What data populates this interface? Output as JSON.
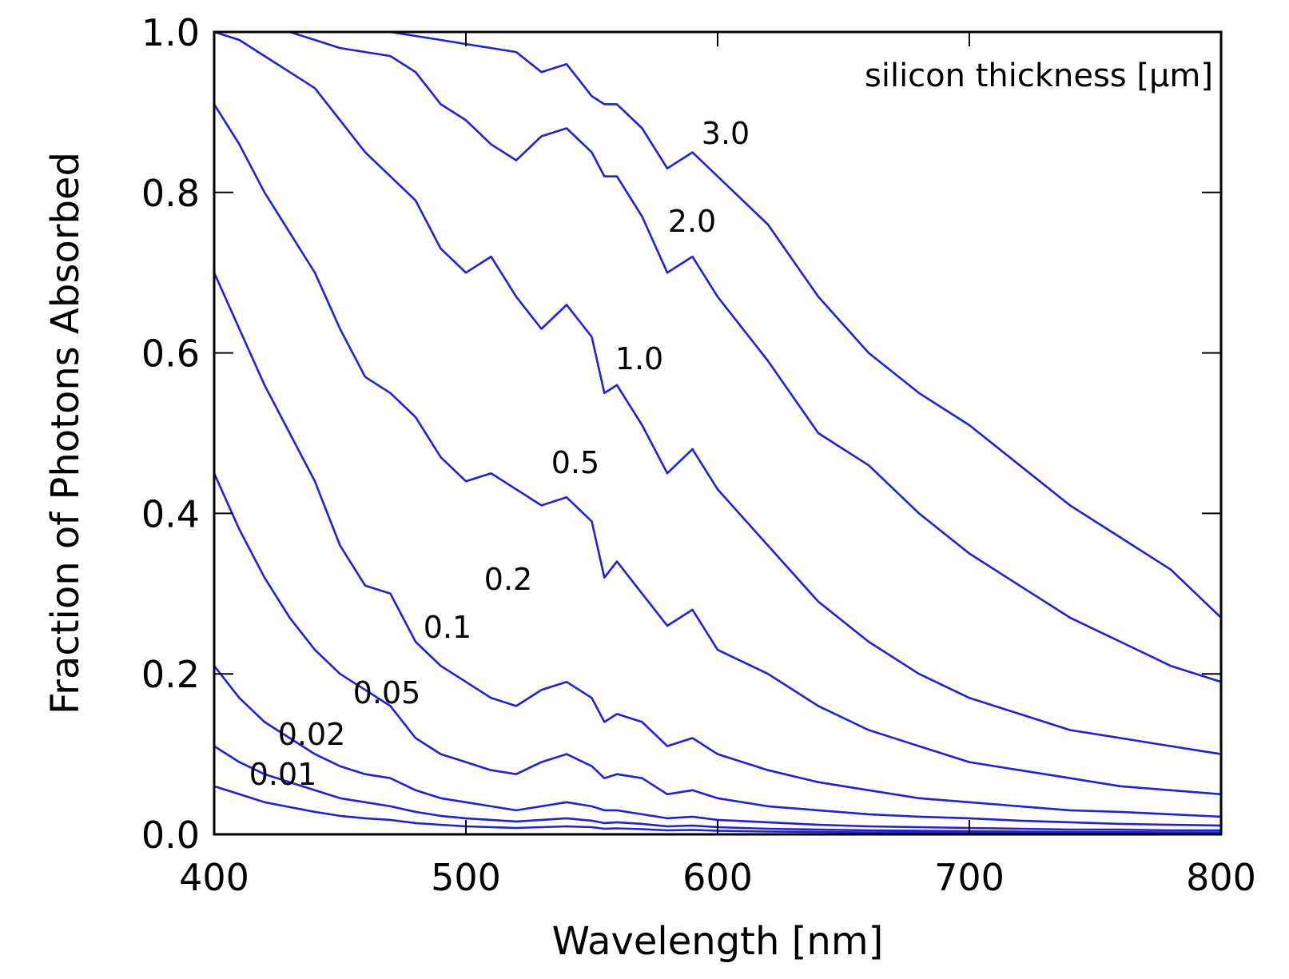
{
  "chart_data": {
    "type": "line",
    "xlabel": "Wavelength [nm]",
    "ylabel": "Fraction of Photons Absorbed",
    "annotation": "silicon thickness [μm]",
    "xlim": [
      400,
      800
    ],
    "ylim": [
      0.0,
      1.0
    ],
    "x_ticks": [
      "400",
      "500",
      "600",
      "700",
      "800"
    ],
    "y_ticks": [
      "0.0",
      "0.2",
      "0.4",
      "0.6",
      "0.8",
      "1.0"
    ],
    "grid": false,
    "line_color": "#1f1fdf",
    "x": [
      400,
      410,
      420,
      430,
      440,
      450,
      460,
      470,
      480,
      490,
      500,
      510,
      520,
      530,
      540,
      550,
      555,
      560,
      570,
      580,
      590,
      600,
      620,
      640,
      660,
      680,
      700,
      720,
      740,
      760,
      780,
      800
    ],
    "series": [
      {
        "name": "3.0",
        "values": [
          1.0,
          1.0,
          1.0,
          1.0,
          1.0,
          1.0,
          1.0,
          1.0,
          0.995,
          0.99,
          0.985,
          0.98,
          0.975,
          0.95,
          0.96,
          0.92,
          0.91,
          0.91,
          0.88,
          0.83,
          0.85,
          0.82,
          0.76,
          0.67,
          0.6,
          0.55,
          0.51,
          0.46,
          0.41,
          0.37,
          0.33,
          0.27
        ]
      },
      {
        "name": "2.0",
        "values": [
          1.0,
          1.0,
          1.0,
          1.0,
          0.99,
          0.98,
          0.975,
          0.97,
          0.95,
          0.91,
          0.89,
          0.86,
          0.84,
          0.87,
          0.88,
          0.85,
          0.82,
          0.82,
          0.77,
          0.7,
          0.72,
          0.67,
          0.59,
          0.5,
          0.46,
          0.4,
          0.35,
          0.31,
          0.27,
          0.24,
          0.21,
          0.19
        ]
      },
      {
        "name": "1.0",
        "values": [
          1.0,
          0.99,
          0.97,
          0.95,
          0.93,
          0.89,
          0.85,
          0.82,
          0.79,
          0.73,
          0.7,
          0.72,
          0.67,
          0.63,
          0.66,
          0.62,
          0.55,
          0.56,
          0.51,
          0.45,
          0.48,
          0.43,
          0.36,
          0.29,
          0.24,
          0.2,
          0.17,
          0.15,
          0.13,
          0.12,
          0.11,
          0.1
        ]
      },
      {
        "name": "0.5",
        "values": [
          0.91,
          0.86,
          0.8,
          0.75,
          0.7,
          0.63,
          0.57,
          0.55,
          0.52,
          0.47,
          0.44,
          0.45,
          0.43,
          0.41,
          0.42,
          0.39,
          0.32,
          0.34,
          0.3,
          0.26,
          0.28,
          0.23,
          0.2,
          0.16,
          0.13,
          0.11,
          0.09,
          0.08,
          0.07,
          0.06,
          0.055,
          0.05
        ]
      },
      {
        "name": "0.2",
        "values": [
          0.7,
          0.63,
          0.56,
          0.5,
          0.44,
          0.36,
          0.31,
          0.3,
          0.24,
          0.21,
          0.19,
          0.17,
          0.16,
          0.18,
          0.19,
          0.17,
          0.14,
          0.15,
          0.14,
          0.11,
          0.12,
          0.1,
          0.08,
          0.065,
          0.055,
          0.045,
          0.04,
          0.035,
          0.03,
          0.028,
          0.025,
          0.022
        ]
      },
      {
        "name": "0.1",
        "values": [
          0.45,
          0.38,
          0.32,
          0.27,
          0.23,
          0.2,
          0.18,
          0.16,
          0.12,
          0.1,
          0.09,
          0.08,
          0.075,
          0.09,
          0.1,
          0.085,
          0.07,
          0.075,
          0.07,
          0.05,
          0.055,
          0.045,
          0.035,
          0.03,
          0.025,
          0.022,
          0.02,
          0.017,
          0.015,
          0.013,
          0.012,
          0.011
        ]
      },
      {
        "name": "0.05",
        "values": [
          0.21,
          0.17,
          0.14,
          0.12,
          0.1,
          0.085,
          0.075,
          0.07,
          0.055,
          0.045,
          0.04,
          0.035,
          0.03,
          0.035,
          0.04,
          0.035,
          0.03,
          0.03,
          0.025,
          0.02,
          0.022,
          0.018,
          0.015,
          0.012,
          0.01,
          0.009,
          0.008,
          0.007,
          0.006,
          0.006,
          0.005,
          0.005
        ]
      },
      {
        "name": "0.02",
        "values": [
          0.11,
          0.09,
          0.075,
          0.065,
          0.055,
          0.045,
          0.04,
          0.035,
          0.028,
          0.023,
          0.02,
          0.018,
          0.016,
          0.018,
          0.02,
          0.017,
          0.014,
          0.015,
          0.013,
          0.01,
          0.011,
          0.009,
          0.007,
          0.006,
          0.005,
          0.0045,
          0.004,
          0.0035,
          0.003,
          0.003,
          0.0025,
          0.0025
        ]
      },
      {
        "name": "0.01",
        "values": [
          0.06,
          0.05,
          0.04,
          0.034,
          0.028,
          0.023,
          0.02,
          0.018,
          0.014,
          0.012,
          0.01,
          0.009,
          0.008,
          0.009,
          0.01,
          0.009,
          0.007,
          0.0075,
          0.0065,
          0.005,
          0.0055,
          0.0045,
          0.0035,
          0.003,
          0.0025,
          0.0022,
          0.002,
          0.0018,
          0.0015,
          0.0015,
          0.0012,
          0.0012
        ]
      }
    ]
  }
}
